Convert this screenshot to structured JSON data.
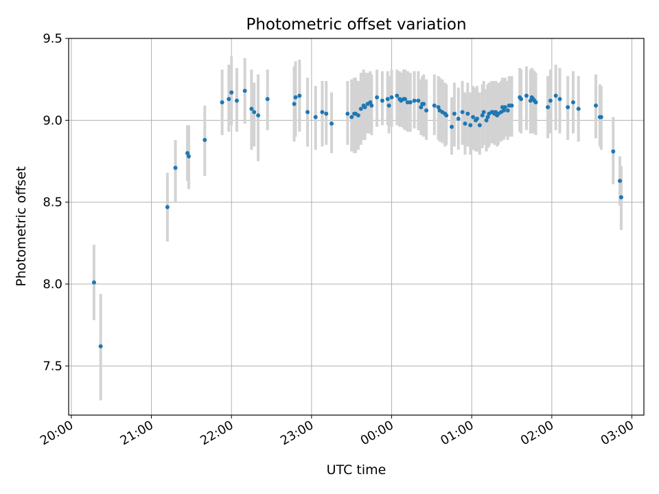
{
  "chart_data": {
    "type": "scatter",
    "title": "Photometric offset variation",
    "xlabel": "UTC time",
    "ylabel": "Photometric offset",
    "x_unit": "UTC time (HH:MM)",
    "xlim": [
      "19:58",
      "03:09"
    ],
    "ylim": [
      7.2,
      9.5
    ],
    "x_ticks": [
      "20:00",
      "21:00",
      "22:00",
      "23:00",
      "00:00",
      "01:00",
      "02:00",
      "03:00"
    ],
    "y_ticks": [
      "7.5",
      "8.0",
      "8.5",
      "9.0",
      "9.5"
    ],
    "grid": true,
    "legend": null,
    "marker_color": "#1f77b4",
    "errorbar_color": "#d3d3d3",
    "series": [
      {
        "x": [
          "20:17",
          "20:22",
          "21:12",
          "21:18",
          "21:27",
          "21:28",
          "21:40",
          "21:53",
          "21:58",
          "22:00",
          "22:04",
          "22:10",
          "22:15",
          "22:17",
          "22:20",
          "22:27",
          "22:47",
          "22:48",
          "22:51",
          "22:57",
          "23:03",
          "23:08",
          "23:11",
          "23:15",
          "23:27",
          "23:30",
          "23:32",
          "23:33",
          "23:35",
          "23:37",
          "23:39",
          "23:40",
          "23:42",
          "23:44",
          "23:45",
          "23:49",
          "23:53",
          "23:57",
          "23:58",
          "24:00",
          "24:04",
          "24:06",
          "24:07",
          "24:09",
          "24:10",
          "24:12",
          "24:14",
          "24:17",
          "24:20",
          "24:22",
          "24:23",
          "24:24",
          "24:26",
          "24:32",
          "24:35",
          "24:36",
          "24:38",
          "24:40",
          "24:41",
          "24:45",
          "24:47",
          "24:50",
          "24:53",
          "24:55",
          "24:57",
          "24:59",
          "25:01",
          "25:03",
          "25:04",
          "25:06",
          "25:08",
          "25:09",
          "25:11",
          "25:12",
          "25:13",
          "25:15",
          "25:16",
          "25:17",
          "25:18",
          "25:19",
          "25:20",
          "25:22",
          "25:23",
          "25:24",
          "25:25",
          "25:27",
          "25:28",
          "25:30",
          "25:36",
          "25:37",
          "25:41",
          "25:44",
          "25:45",
          "25:46",
          "25:47",
          "25:48",
          "25:57",
          "25:59",
          "26:03",
          "26:06",
          "26:12",
          "26:16",
          "26:20",
          "26:33",
          "26:36",
          "26:37",
          "26:46",
          "26:51",
          "26:52"
        ],
        "y": [
          8.01,
          7.62,
          8.47,
          8.71,
          8.8,
          8.78,
          8.88,
          9.11,
          9.13,
          9.17,
          9.12,
          9.18,
          9.07,
          9.05,
          9.03,
          9.13,
          9.1,
          9.14,
          9.15,
          9.05,
          9.02,
          9.05,
          9.04,
          8.98,
          9.04,
          9.02,
          9.04,
          9.04,
          9.03,
          9.07,
          9.09,
          9.08,
          9.1,
          9.11,
          9.09,
          9.14,
          9.12,
          9.13,
          9.09,
          9.14,
          9.15,
          9.13,
          9.12,
          9.13,
          9.13,
          9.11,
          9.11,
          9.12,
          9.12,
          9.08,
          9.1,
          9.1,
          9.06,
          9.09,
          9.08,
          9.06,
          9.05,
          9.04,
          9.03,
          8.96,
          9.04,
          9.01,
          9.05,
          8.98,
          9.04,
          8.97,
          9.02,
          9.0,
          9.01,
          8.97,
          9.03,
          9.05,
          9.0,
          9.02,
          9.04,
          9.05,
          9.05,
          9.04,
          9.05,
          9.03,
          9.04,
          9.05,
          9.08,
          9.06,
          9.08,
          9.06,
          9.09,
          9.09,
          9.14,
          9.13,
          9.15,
          9.12,
          9.14,
          9.13,
          9.12,
          9.11,
          9.08,
          9.12,
          9.15,
          9.13,
          9.08,
          9.11,
          9.07,
          9.09,
          9.02,
          9.02,
          8.81,
          8.63,
          8.53
        ],
        "y_err_low": [
          7.78,
          7.29,
          8.26,
          8.5,
          8.63,
          8.58,
          8.66,
          8.91,
          8.93,
          8.97,
          8.93,
          8.98,
          8.82,
          8.84,
          8.75,
          8.94,
          8.87,
          8.9,
          8.93,
          8.84,
          8.82,
          8.84,
          8.85,
          8.8,
          8.85,
          8.81,
          8.8,
          8.8,
          8.82,
          8.85,
          8.88,
          8.88,
          8.92,
          8.92,
          8.91,
          8.96,
          8.97,
          8.97,
          8.92,
          8.96,
          8.97,
          8.96,
          8.96,
          8.95,
          8.94,
          8.93,
          8.93,
          8.95,
          8.94,
          8.91,
          8.91,
          8.9,
          8.88,
          8.91,
          8.88,
          8.87,
          8.86,
          8.84,
          8.85,
          8.79,
          8.84,
          8.82,
          8.85,
          8.79,
          8.84,
          8.79,
          8.82,
          8.81,
          8.81,
          8.79,
          8.83,
          8.85,
          8.81,
          8.83,
          8.84,
          8.86,
          8.86,
          8.85,
          8.86,
          8.84,
          8.85,
          8.87,
          8.9,
          8.88,
          8.9,
          8.88,
          8.9,
          8.9,
          8.93,
          8.92,
          8.94,
          8.92,
          8.93,
          8.92,
          8.93,
          8.91,
          8.89,
          8.92,
          8.94,
          8.92,
          8.88,
          8.92,
          8.87,
          8.89,
          8.84,
          8.82,
          8.61,
          8.48,
          8.33
        ],
        "y_err_high": [
          8.24,
          7.94,
          8.68,
          8.88,
          8.97,
          8.97,
          9.09,
          9.31,
          9.34,
          9.39,
          9.32,
          9.38,
          9.31,
          9.23,
          9.28,
          9.31,
          9.33,
          9.36,
          9.37,
          9.26,
          9.21,
          9.24,
          9.24,
          9.17,
          9.24,
          9.25,
          9.26,
          9.26,
          9.24,
          9.29,
          9.31,
          9.29,
          9.29,
          9.3,
          9.28,
          9.31,
          9.3,
          9.3,
          9.27,
          9.31,
          9.31,
          9.3,
          9.29,
          9.31,
          9.31,
          9.3,
          9.29,
          9.3,
          9.3,
          9.25,
          9.27,
          9.28,
          9.25,
          9.28,
          9.27,
          9.26,
          9.25,
          9.23,
          9.22,
          9.14,
          9.23,
          9.2,
          9.24,
          9.17,
          9.23,
          9.17,
          9.21,
          9.2,
          9.21,
          9.17,
          9.22,
          9.24,
          9.19,
          9.22,
          9.23,
          9.24,
          9.24,
          9.23,
          9.24,
          9.22,
          9.23,
          9.24,
          9.26,
          9.24,
          9.26,
          9.24,
          9.27,
          9.27,
          9.32,
          9.31,
          9.33,
          9.31,
          9.32,
          9.31,
          9.3,
          9.29,
          9.27,
          9.31,
          9.34,
          9.32,
          9.27,
          9.3,
          9.27,
          9.28,
          9.22,
          9.21,
          9.02,
          8.78,
          8.72
        ]
      }
    ]
  }
}
